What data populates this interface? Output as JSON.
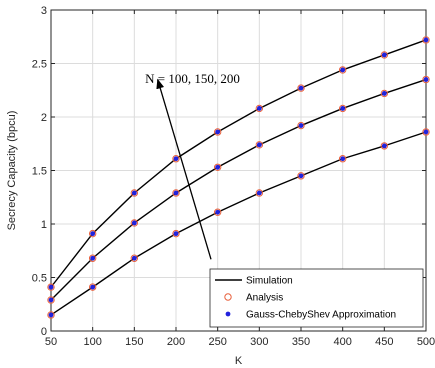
{
  "chart_data": {
    "type": "line",
    "xlabel": "K",
    "ylabel": "Secrecy Capacity (bpcu)",
    "xlim": [
      50,
      500
    ],
    "ylim": [
      0,
      3
    ],
    "xticks": [
      50,
      100,
      150,
      200,
      250,
      300,
      350,
      400,
      450,
      500
    ],
    "yticks": [
      0,
      0.5,
      1,
      1.5,
      2,
      2.5,
      3
    ],
    "ytick_labels": [
      "0",
      "0.5",
      "1",
      "1.5",
      "2",
      "2.5",
      "3"
    ],
    "grid": true,
    "legend_position": "bottom-right",
    "x": [
      50,
      100,
      150,
      200,
      250,
      300,
      350,
      400,
      450,
      500
    ],
    "curves": [
      [
        0.15,
        0.41,
        0.68,
        0.91,
        1.11,
        1.29,
        1.45,
        1.61,
        1.73,
        1.86
      ],
      [
        0.29,
        0.68,
        1.01,
        1.29,
        1.53,
        1.74,
        1.92,
        2.08,
        2.22,
        2.35
      ],
      [
        0.41,
        0.91,
        1.29,
        1.61,
        1.86,
        2.08,
        2.27,
        2.44,
        2.58,
        2.72
      ]
    ],
    "series": [
      {
        "name": "Simulation",
        "style": "line",
        "color": "#000000"
      },
      {
        "name": "Analysis",
        "style": "open-circle",
        "color": "#e8603c"
      },
      {
        "name": "Gauss-ChebyShev Approximation",
        "style": "dot",
        "color": "#2222dd"
      }
    ],
    "annotation": {
      "text": "N = 100, 150, 200",
      "arrow_from": [
        242,
        0.67
      ],
      "arrow_to": [
        178,
        2.35
      ],
      "text_anchor": [
        163,
        2.32
      ]
    }
  }
}
